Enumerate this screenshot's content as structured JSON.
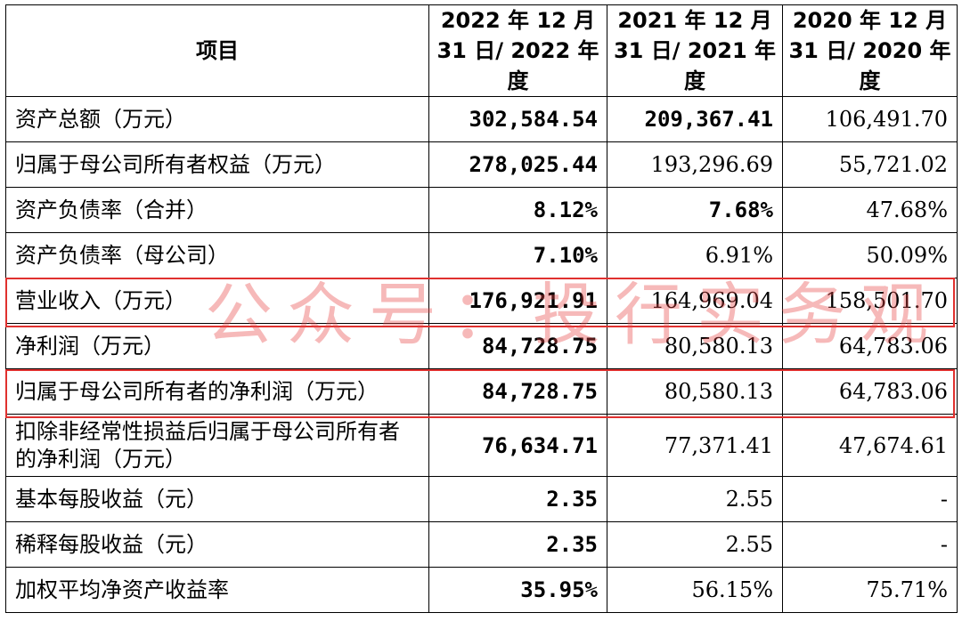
{
  "table": {
    "header": {
      "item": "项目",
      "col1": "2022 年 12 月 31 日/ 2022 年度",
      "col2": "2021 年 12 月 31 日/ 2021 年度",
      "col3": "2020 年 12 月 31 日/ 2020 年度"
    },
    "rows": [
      {
        "label": "资产总额（万元）",
        "v2022": "302,584.54",
        "v2021": "209,367.41",
        "v2020": "106,491.70"
      },
      {
        "label": "归属于母公司所有者权益（万元）",
        "v2022": "278,025.44",
        "v2021": "193,296.69",
        "v2020": "55,721.02"
      },
      {
        "label": "资产负债率（合并）",
        "v2022": "8.12%",
        "v2021": "7.68%",
        "v2020": "47.68%"
      },
      {
        "label": "资产负债率（母公司）",
        "v2022": "7.10%",
        "v2021": "6.91%",
        "v2020": "50.09%"
      },
      {
        "label": "营业收入（万元）",
        "v2022": "176,921.91",
        "v2021": "164,969.04",
        "v2020": "158,501.70"
      },
      {
        "label": "净利润（万元）",
        "v2022": "84,728.75",
        "v2021": "80,580.13",
        "v2020": "64,783.06"
      },
      {
        "label": "归属于母公司所有者的净利润（万元）",
        "v2022": "84,728.75",
        "v2021": "80,580.13",
        "v2020": "64,783.06"
      },
      {
        "label": "扣除非经常性损益后归属于母公司所有者的净利润（万元）",
        "v2022": "76,634.71",
        "v2021": "77,371.41",
        "v2020": "47,674.61"
      },
      {
        "label": "基本每股收益（元）",
        "v2022": "2.35",
        "v2021": "2.55",
        "v2020": "-"
      },
      {
        "label": "稀释每股收益（元）",
        "v2022": "2.35",
        "v2021": "2.55",
        "v2020": "-"
      },
      {
        "label": "加权平均净资产收益率",
        "v2022": "35.95%",
        "v2021": "56.15%",
        "v2020": "75.71%"
      }
    ]
  },
  "watermark": "公众号：投行实务观",
  "highlight_color": "#e0312f"
}
